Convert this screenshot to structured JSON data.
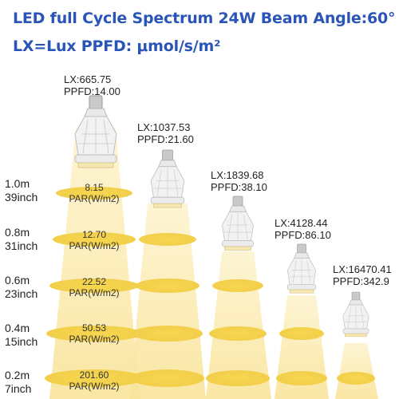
{
  "header": {
    "line1": "LED full Cycle Spectrum 24W  Beam Angle:60°",
    "line2": "LX=Lux PPFD: μmol/s/m²"
  },
  "distances": [
    {
      "m": "1.0m",
      "inch": "39inch"
    },
    {
      "m": "0.8m",
      "inch": "31inch"
    },
    {
      "m": "0.6m",
      "inch": "23inch"
    },
    {
      "m": "0.4m",
      "inch": "15inch"
    },
    {
      "m": "0.2m",
      "inch": "7inch"
    }
  ],
  "lamps": [
    {
      "lx": "LX:665.75",
      "ppfd": "PPFD:14.00"
    },
    {
      "lx": "LX:1037.53",
      "ppfd": "PPFD:21.60"
    },
    {
      "lx": "LX:1839.68",
      "ppfd": "PPFD:38.10"
    },
    {
      "lx": "LX:4128.44",
      "ppfd": "PPFD:86.10"
    },
    {
      "lx": "LX:16470.41",
      "ppfd": "PPFD:342.9"
    }
  ],
  "par_values": [
    {
      "value": "8.15",
      "unit": "PAR(W/m2)"
    },
    {
      "value": "12.70",
      "unit": "PAR(W/m2)"
    },
    {
      "value": "22.52",
      "unit": "PAR(W/m2)"
    },
    {
      "value": "50.53",
      "unit": "PAR(W/m2)"
    },
    {
      "value": "201.60",
      "unit": "PAR(W/m2)"
    }
  ],
  "colors": {
    "title": "#2a55b8",
    "beam": "#fbe9a6",
    "spot": "#f5d24a"
  }
}
